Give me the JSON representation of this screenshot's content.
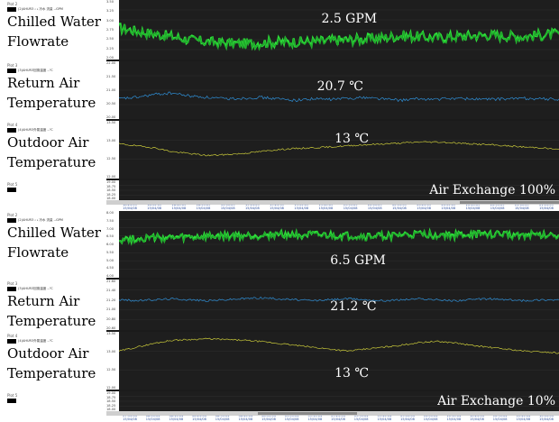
{
  "chart_data": [
    {
      "type": "line",
      "panel": "top",
      "plots": [
        {
          "plot_tag": "Plot 2",
          "series_name": "(2)AHUR3 ₂ ₃ 冷水 流量 --GPM",
          "label_lines": [
            "Chilled Water",
            "Flowrate"
          ],
          "overlay": "2.5 GPM",
          "ticks": [
            "3.50",
            "3.25",
            "3.00",
            "2.75",
            "2.50",
            "2.25",
            "2.00"
          ],
          "ylim": [
            2.0,
            3.5
          ],
          "color": "#2ee03a",
          "noise": 0.13,
          "fill": true,
          "values": [
            2.8,
            2.72,
            2.65,
            2.58,
            2.5,
            2.45,
            2.42,
            2.4,
            2.42,
            2.44,
            2.45,
            2.45,
            2.48,
            2.5,
            2.52,
            2.55,
            2.6,
            2.58,
            2.55,
            2.58,
            2.6,
            2.62,
            2.6,
            2.58,
            2.62,
            2.65
          ]
        },
        {
          "plot_tag": "Plot 3",
          "series_name": "(3)AHUR3回風溫度 --℃",
          "label_lines": [
            "Return Air",
            "Temperature"
          ],
          "overlay": "20.7 ℃",
          "ticks": [
            "22.00",
            "21.50",
            "21.00",
            "20.50",
            "20.00"
          ],
          "ylim": [
            20.0,
            22.0
          ],
          "color": "#2f8fd6",
          "noise": 0.05,
          "fill": false,
          "values": [
            20.7,
            20.75,
            20.85,
            20.9,
            20.8,
            20.75,
            20.7,
            20.72,
            20.75,
            20.7,
            20.65,
            20.7,
            20.68,
            20.72,
            20.75,
            20.7,
            20.65,
            20.7,
            20.68,
            20.72,
            20.7,
            20.68,
            20.7,
            20.72,
            20.7,
            20.68
          ]
        },
        {
          "plot_tag": "Plot 4",
          "series_name": "(4)AHUR3外氣溫度 --℃",
          "label_lines": [
            "Outdoor Air",
            "Temperature"
          ],
          "overlay": "13 ℃",
          "ticks": [
            "13.50",
            "13.00",
            "12.50",
            "12.00"
          ],
          "ylim": [
            12.0,
            13.5
          ],
          "color": "#c9c93a",
          "noise": 0.02,
          "fill": false,
          "values": [
            12.9,
            12.85,
            12.8,
            12.7,
            12.65,
            12.6,
            12.62,
            12.65,
            12.7,
            12.75,
            12.78,
            12.8,
            12.82,
            12.85,
            12.88,
            12.9,
            12.92,
            12.95,
            12.95,
            12.93,
            12.9,
            12.88,
            12.85,
            12.82,
            12.8,
            12.75
          ]
        },
        {
          "plot_tag": "Plot 5",
          "series_name": "",
          "label_lines": [],
          "overlay": "Air Exchange 100%",
          "ticks": [
            "19.00",
            "18.75",
            "18.50",
            "18.25",
            "18.00"
          ],
          "ylim": [
            18.0,
            19.0
          ],
          "color": "#ffffff",
          "noise": 0,
          "fill": false,
          "values": []
        }
      ],
      "x_ticks": [
        [
          "18:25:09",
          "15/04/08"
        ],
        [
          "18:35:09",
          "15/04/08"
        ],
        [
          "18:45:09",
          "15/04/08"
        ],
        [
          "18:55:09",
          "15/04/08"
        ],
        [
          "19:05:09",
          "15/04/08"
        ],
        [
          "19:15:09",
          "15/04/08"
        ],
        [
          "19:25:09",
          "15/04/08"
        ],
        [
          "19:35:09",
          "15/04/08"
        ],
        [
          "19:45:09",
          "15/04/08"
        ],
        [
          "19:55:09",
          "15/04/08"
        ],
        [
          "20:05:09",
          "15/04/08"
        ],
        [
          "20:15:09",
          "15/04/08"
        ],
        [
          "20:25:09",
          "15/04/08"
        ],
        [
          "20:35:09",
          "15/04/08"
        ],
        [
          "20:45:09",
          "15/04/08"
        ],
        [
          "20:55:09",
          "15/04/08"
        ],
        [
          "21:05:09",
          "15/04/08"
        ],
        [
          "21:15:09",
          "15/04/08"
        ]
      ]
    },
    {
      "type": "line",
      "panel": "bottom",
      "plots": [
        {
          "plot_tag": "Plot 2",
          "series_name": "(2)AHUR3 ₂ ₃ 冷水 流量 --GPM",
          "label_lines": [
            "Chilled Water",
            "Flowrate"
          ],
          "overlay": "6.5 GPM",
          "ticks": [
            "8.00",
            "7.50",
            "7.00",
            "6.50",
            "6.00",
            "5.50",
            "5.00",
            "4.50",
            "4.00"
          ],
          "ylim": [
            4.0,
            8.0
          ],
          "color": "#2ee03a",
          "noise": 0.22,
          "fill": true,
          "values": [
            6.3,
            6.35,
            6.4,
            6.38,
            6.42,
            6.45,
            6.48,
            6.5,
            6.55,
            6.6,
            6.58,
            6.55,
            6.52,
            6.5,
            6.48,
            6.5,
            6.55,
            6.6,
            6.58,
            6.55,
            6.6,
            6.62,
            6.6,
            6.58,
            6.55,
            6.6
          ]
        },
        {
          "plot_tag": "Plot 3",
          "series_name": "(3)AHUR3回風溫度 --℃",
          "label_lines": [
            "Return Air",
            "Temperature"
          ],
          "overlay": "21.2 ℃",
          "ticks": [
            "21.60",
            "21.40",
            "21.20",
            "21.00",
            "20.80",
            "20.60"
          ],
          "ylim": [
            20.6,
            21.6
          ],
          "color": "#2f8fd6",
          "noise": 0.02,
          "fill": false,
          "values": [
            21.2,
            21.18,
            21.2,
            21.22,
            21.2,
            21.18,
            21.2,
            21.22,
            21.24,
            21.22,
            21.2,
            21.18,
            21.2,
            21.22,
            21.2,
            21.18,
            21.2,
            21.22,
            21.2,
            21.18,
            21.2,
            21.22,
            21.2,
            21.18,
            21.2,
            21.2
          ]
        },
        {
          "plot_tag": "Plot 4",
          "series_name": "(4)AHUR3外氣溫度 --℃",
          "label_lines": [
            "Outdoor Air",
            "Temperature"
          ],
          "overlay": "13 ℃",
          "ticks": [
            "13.50",
            "13.00",
            "12.50",
            "12.00"
          ],
          "ylim": [
            12.0,
            13.5
          ],
          "color": "#c9c93a",
          "noise": 0.02,
          "fill": false,
          "values": [
            13.0,
            13.1,
            13.2,
            13.28,
            13.3,
            13.32,
            13.3,
            13.28,
            13.25,
            13.2,
            13.15,
            13.1,
            13.05,
            13.0,
            13.05,
            13.1,
            13.15,
            13.22,
            13.25,
            13.22,
            13.15,
            13.1,
            13.05,
            13.0,
            12.98,
            12.95
          ]
        },
        {
          "plot_tag": "Plot 5",
          "series_name": "",
          "label_lines": [],
          "overlay": "Air Exchange  10%",
          "ticks": [
            "19.00",
            "18.75",
            "18.50",
            "18.25",
            "18.00"
          ],
          "ylim": [
            18.0,
            19.0
          ],
          "color": "#ffffff",
          "noise": 0,
          "fill": false,
          "values": []
        }
      ],
      "x_ticks": [
        [
          "07:55:04",
          "15/04/08"
        ],
        [
          "08:05:04",
          "15/04/08"
        ],
        [
          "08:15:04",
          "15/04/08"
        ],
        [
          "08:25:04",
          "15/04/08"
        ],
        [
          "08:35:04",
          "15/04/08"
        ],
        [
          "08:45:04",
          "15/04/08"
        ],
        [
          "08:55:04",
          "15/04/08"
        ],
        [
          "09:05:04",
          "15/04/08"
        ],
        [
          "09:15:04",
          "15/04/08"
        ],
        [
          "09:25:04",
          "15/04/08"
        ],
        [
          "09:35:04",
          "15/04/08"
        ],
        [
          "09:45:04",
          "15/04/08"
        ],
        [
          "09:55:04",
          "15/04/08"
        ],
        [
          "10:05:04",
          "15/04/08"
        ],
        [
          "10:15:04",
          "15/04/08"
        ],
        [
          "10:25:04",
          "15/04/08"
        ],
        [
          "10:35:04",
          "15/04/08"
        ],
        [
          "10:45:04",
          "15/04/08"
        ],
        [
          "10:55:04",
          "15/04/08"
        ]
      ]
    }
  ]
}
